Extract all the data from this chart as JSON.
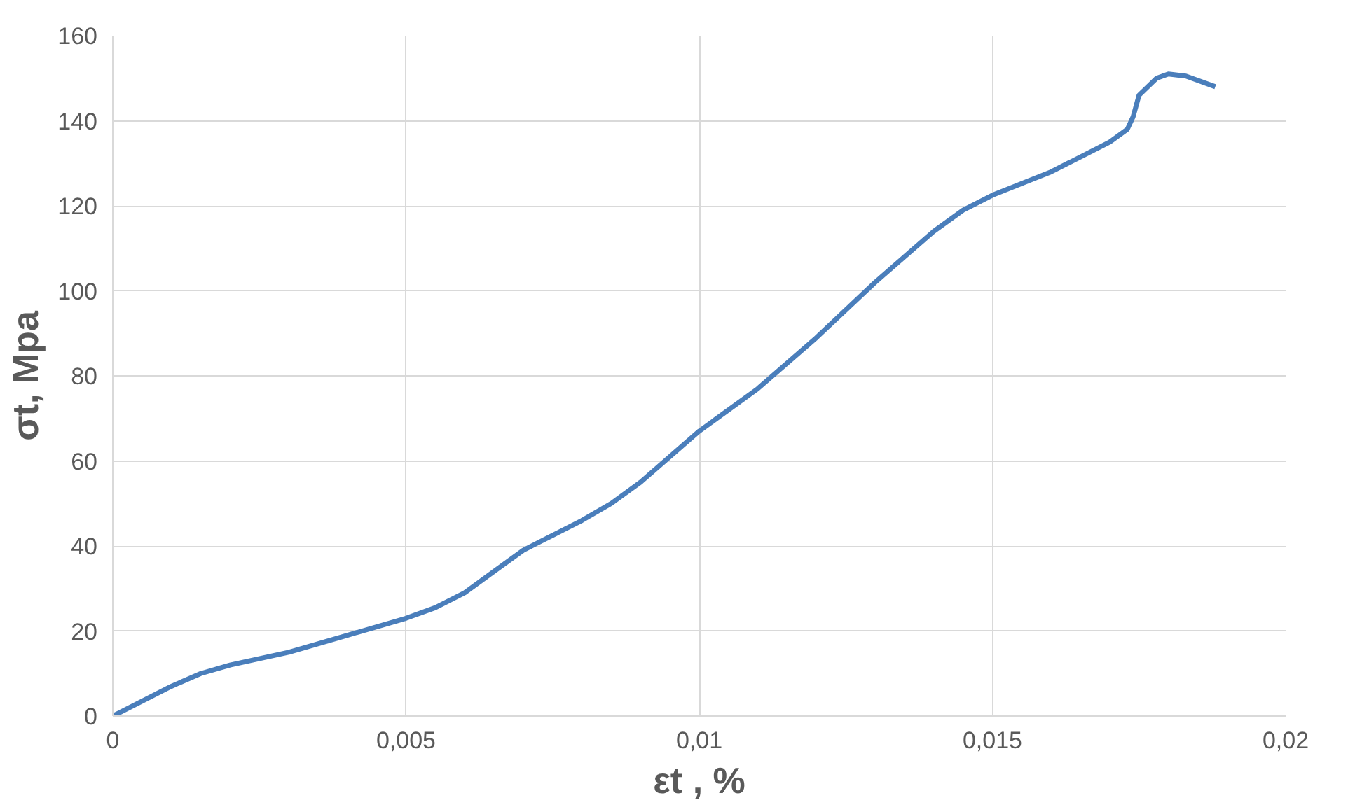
{
  "chart_data": {
    "type": "line",
    "xlabel": "εt , %",
    "ylabel": "σt, Mpa",
    "series": [
      {
        "color": "#4a7ebb",
        "x": [
          0,
          0.001,
          0.0015,
          0.002,
          0.003,
          0.004,
          0.005,
          0.0055,
          0.006,
          0.0065,
          0.007,
          0.0075,
          0.008,
          0.0085,
          0.009,
          0.0095,
          0.01,
          0.011,
          0.012,
          0.013,
          0.014,
          0.0145,
          0.015,
          0.016,
          0.017,
          0.0173,
          0.0174,
          0.0175,
          0.0178,
          0.018,
          0.0183,
          0.0188
        ],
        "values": [
          0,
          7,
          10,
          12,
          15,
          19,
          23,
          25.5,
          29,
          34,
          39,
          42.5,
          46,
          50,
          55,
          61,
          67,
          77,
          89,
          102,
          114,
          119,
          122.5,
          128,
          135,
          138,
          141,
          146,
          150,
          151,
          150.5,
          148
        ]
      }
    ],
    "xlim": [
      0,
      0.02
    ],
    "ylim": [
      0,
      160
    ],
    "xticks": [
      0,
      {
        "value": 0.005,
        "label": "0,005"
      },
      {
        "value": 0.01,
        "label": "0,01"
      },
      {
        "value": 0.015,
        "label": "0,015"
      },
      {
        "value": 0.02,
        "label": "0,02"
      }
    ],
    "yticks": [
      0,
      20,
      40,
      60,
      80,
      100,
      120,
      140,
      160
    ],
    "grid": true,
    "marker": "none",
    "line_style": "solid"
  }
}
